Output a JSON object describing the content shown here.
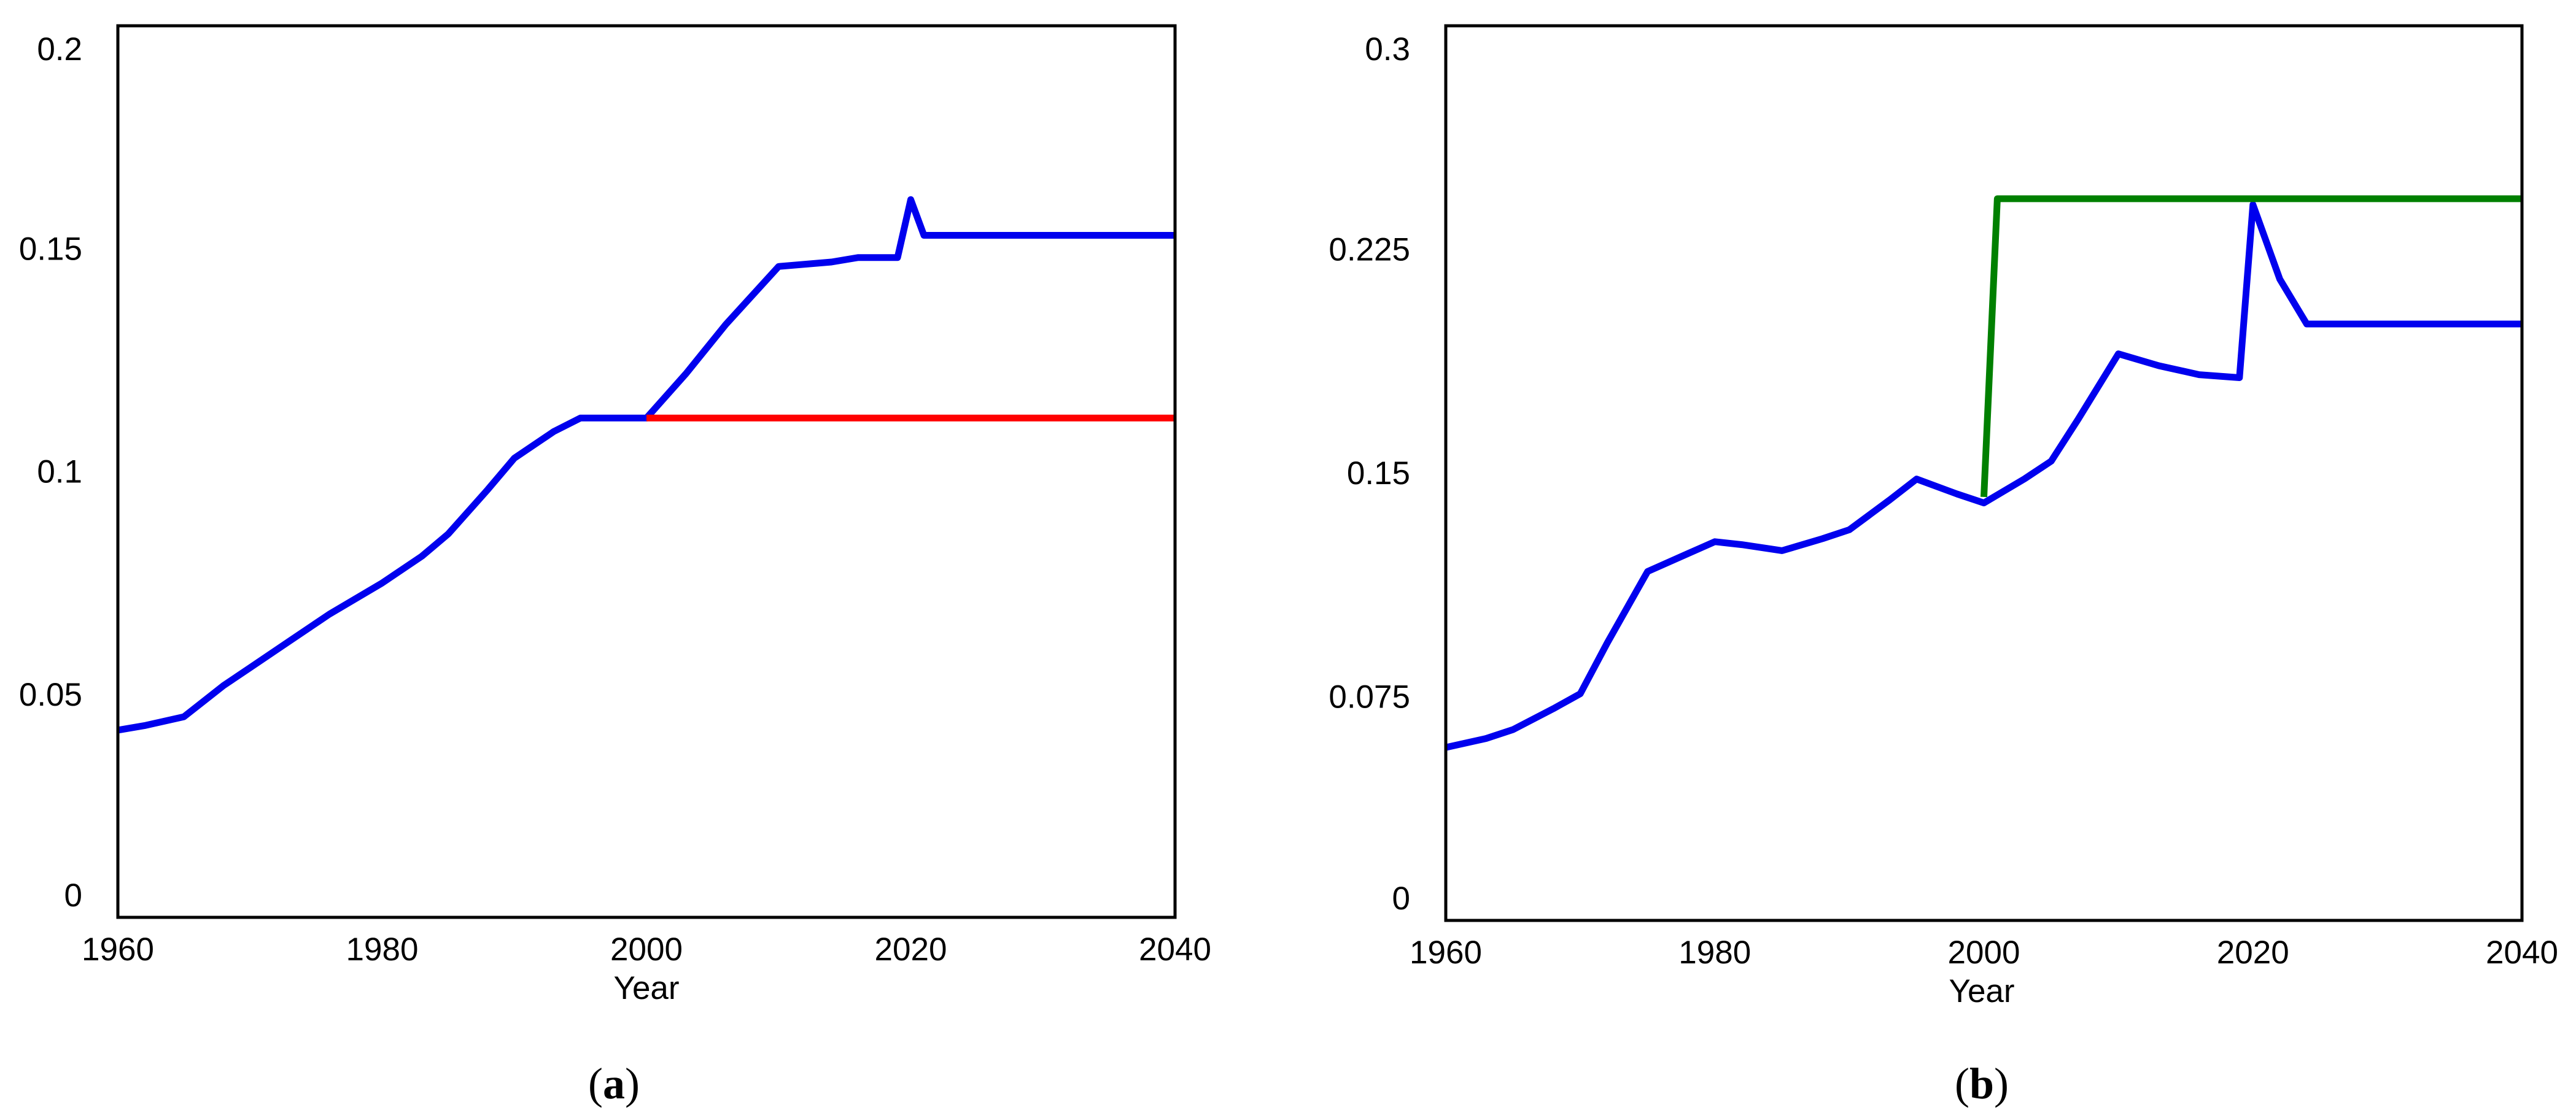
{
  "chart_data": [
    {
      "type": "line",
      "panel": "a",
      "caption_open": "(",
      "caption_letter": "a",
      "caption_close": ")",
      "xlabel": "Year",
      "ylabel": "",
      "xlim": [
        1960,
        2040
      ],
      "ylim": [
        0,
        0.2
      ],
      "x_ticks": [
        1960,
        1980,
        2000,
        2020,
        2040
      ],
      "x_tick_labels": [
        "1960",
        "1980",
        "2000",
        "2020",
        "2040"
      ],
      "y_ticks": [
        0,
        0.05,
        0.1,
        0.15,
        0.2
      ],
      "y_tick_labels": [
        "0",
        "0.05",
        "0.1",
        "0.15",
        "0.2"
      ],
      "grid": false,
      "series": [
        {
          "color": "#0000ee",
          "points": [
            [
              1960,
              0.042
            ],
            [
              1962,
              0.043
            ],
            [
              1965,
              0.045
            ],
            [
              1968,
              0.052
            ],
            [
              1970,
              0.056
            ],
            [
              1973,
              0.062
            ],
            [
              1976,
              0.068
            ],
            [
              1980,
              0.075
            ],
            [
              1983,
              0.081
            ],
            [
              1985,
              0.086
            ],
            [
              1988,
              0.096
            ],
            [
              1990,
              0.103
            ],
            [
              1993,
              0.109
            ],
            [
              1995,
              0.112
            ],
            [
              2000,
              0.112
            ],
            [
              2003,
              0.122
            ],
            [
              2006,
              0.133
            ],
            [
              2010,
              0.146
            ],
            [
              2014,
              0.147
            ],
            [
              2016,
              0.148
            ],
            [
              2019,
              0.148
            ],
            [
              2020,
              0.161
            ],
            [
              2021,
              0.153
            ],
            [
              2040,
              0.153
            ]
          ]
        },
        {
          "color": "#ff0000",
          "points": [
            [
              2000,
              0.112
            ],
            [
              2040,
              0.112
            ]
          ]
        }
      ]
    },
    {
      "type": "line",
      "panel": "b",
      "caption_open": "(",
      "caption_letter": "b",
      "caption_close": ")",
      "xlabel": "Year",
      "ylabel": "",
      "xlim": [
        1960,
        2040
      ],
      "ylim": [
        0,
        0.3
      ],
      "x_ticks": [
        1960,
        1980,
        2000,
        2020,
        2040
      ],
      "x_tick_labels": [
        "1960",
        "1980",
        "2000",
        "2020",
        "2040"
      ],
      "y_ticks": [
        0,
        0.075,
        0.15,
        0.225,
        0.3
      ],
      "y_tick_labels": [
        "0",
        "0.075",
        "0.15",
        "0.225",
        "0.3"
      ],
      "grid": false,
      "series": [
        {
          "color": "#0000ee",
          "points": [
            [
              1960,
              0.058
            ],
            [
              1963,
              0.061
            ],
            [
              1965,
              0.064
            ],
            [
              1968,
              0.071
            ],
            [
              1970,
              0.076
            ],
            [
              1972,
              0.093
            ],
            [
              1975,
              0.117
            ],
            [
              1978,
              0.123
            ],
            [
              1980,
              0.127
            ],
            [
              1982,
              0.126
            ],
            [
              1985,
              0.124
            ],
            [
              1988,
              0.128
            ],
            [
              1990,
              0.131
            ],
            [
              1993,
              0.141
            ],
            [
              1995,
              0.148
            ],
            [
              1998,
              0.143
            ],
            [
              2000,
              0.14
            ],
            [
              2003,
              0.148
            ],
            [
              2005,
              0.154
            ],
            [
              2007,
              0.168
            ],
            [
              2010,
              0.19
            ],
            [
              2013,
              0.186
            ],
            [
              2016,
              0.183
            ],
            [
              2019,
              0.182
            ],
            [
              2020,
              0.24
            ],
            [
              2022,
              0.215
            ],
            [
              2024,
              0.2
            ],
            [
              2040,
              0.2
            ]
          ]
        },
        {
          "color": "#008000",
          "points": [
            [
              2000,
              0.142
            ],
            [
              2001,
              0.242
            ],
            [
              2040,
              0.242
            ]
          ]
        }
      ]
    }
  ]
}
